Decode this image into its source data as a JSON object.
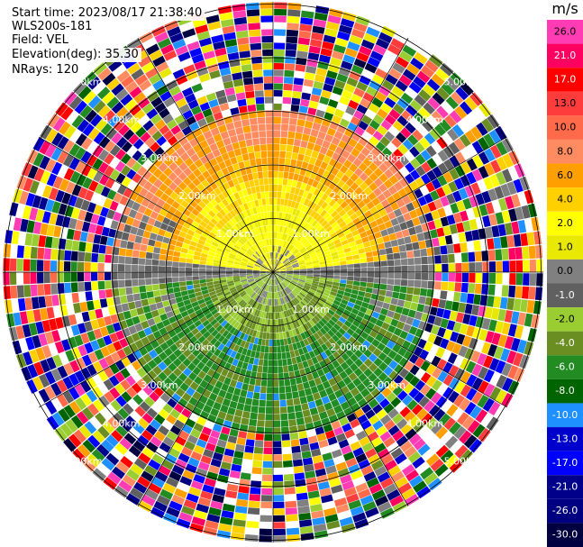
{
  "info": {
    "start_time": "Start time: 2023/08/17 21:38:40",
    "instrument": "WLS200s-181",
    "field": "Field: VEL",
    "elevation": "Elevation(deg): 35.30",
    "nrays": "NRays: 120"
  },
  "colorbar": {
    "unit": "m/s",
    "ticks": [
      "26.0",
      "21.0",
      "17.0",
      "13.0",
      "10.0",
      "8.0",
      "6.0",
      "4.0",
      "2.0",
      "1.0",
      "0.0",
      "-1.0",
      "-2.0",
      "-4.0",
      "-6.0",
      "-8.0",
      "-10.0",
      "-13.0",
      "-17.0",
      "-21.0",
      "-26.0",
      "-30.0"
    ],
    "colors": [
      "#ff3cb4",
      "#ff0060",
      "#ff0000",
      "#ff3c3c",
      "#ff6a4a",
      "#ff8c60",
      "#ffa000",
      "#ffd000",
      "#ffff00",
      "#e8e800",
      "#808080",
      "#606060",
      "#9acd32",
      "#6b8e23",
      "#228b22",
      "#006400",
      "#1e90ff",
      "#0000cd",
      "#0000ff",
      "#00008b",
      "#000080",
      "#000040"
    ]
  },
  "chart_data": {
    "type": "ppi",
    "field": "VEL",
    "unit": "m/s",
    "n_rays": 120,
    "elevation_deg": 35.3,
    "range_rings_km": [
      "1.00km",
      "2.00km",
      "3.00km",
      "4.00km",
      "5.00km"
    ],
    "max_range_km": 5.2,
    "description_of_field": {
      "within_3km_north_half": "positive velocities 4 to 13 m/s (yellow to orange)",
      "within_3km_south_half": "negative velocities -2 to -8 m/s (green), some -10 (blue) patches",
      "near_zero_band": "gray along east-west axis",
      "beyond_3km": "noisy multicolor speckle"
    }
  }
}
